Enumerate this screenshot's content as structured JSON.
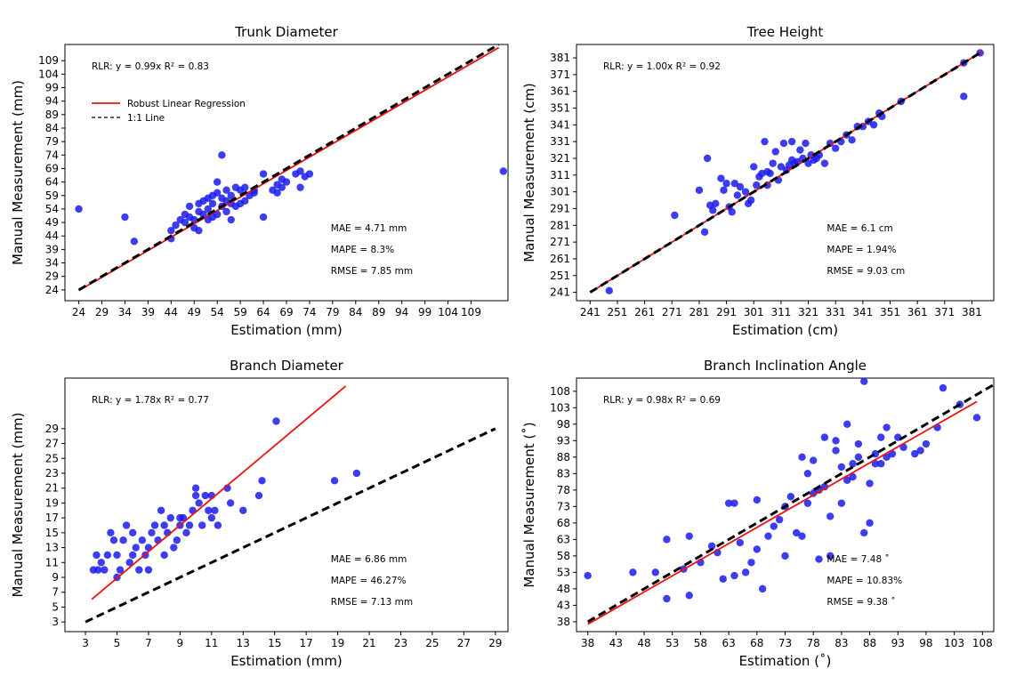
{
  "chart_data": [
    {
      "type": "scatter",
      "title": "Trunk Diameter",
      "xlabel": "Estimation (mm)",
      "ylabel": "Manual Measurement (mm)",
      "xlim": [
        21,
        117
      ],
      "ylim": [
        20,
        115
      ],
      "xticks": [
        24,
        29,
        34,
        39,
        44,
        49,
        54,
        59,
        64,
        69,
        74,
        79,
        84,
        89,
        94,
        99,
        104,
        109
      ],
      "yticks": [
        24,
        29,
        34,
        39,
        44,
        49,
        54,
        59,
        64,
        69,
        74,
        79,
        84,
        89,
        94,
        99,
        104,
        109
      ],
      "rlr_text": "RLR: y = 0.99x R² = 0.83",
      "metrics": [
        "MAE = 4.71 mm",
        "MAPE = 8.3%",
        "RMSE = 7.85 mm"
      ],
      "legend": [
        "Robust Linear Regression",
        "1:1 Line"
      ],
      "rlr_slope": 0.99,
      "line_range": [
        24,
        115
      ],
      "x": [
        24,
        34,
        36,
        44,
        44,
        45,
        46,
        47,
        47,
        48,
        48,
        49,
        49,
        50,
        50,
        50,
        51,
        51,
        52,
        52,
        52,
        53,
        53,
        53,
        54,
        54,
        54,
        55,
        55,
        55,
        56,
        56,
        56,
        57,
        57,
        57,
        58,
        58,
        59,
        59,
        60,
        60,
        61,
        62,
        62,
        64,
        64,
        66,
        67,
        67,
        68,
        68,
        69,
        71,
        72,
        72,
        73,
        74,
        116
      ],
      "y": [
        54,
        51,
        42,
        43,
        46,
        48,
        50,
        49,
        52,
        51,
        55,
        47,
        50,
        46,
        53,
        56,
        52,
        57,
        50,
        54,
        58,
        51,
        56,
        59,
        52,
        60,
        64,
        55,
        58,
        74,
        53,
        57,
        61,
        50,
        56,
        59,
        55,
        62,
        56,
        61,
        57,
        62,
        59,
        61,
        60,
        51,
        67,
        61,
        63,
        60,
        62,
        65,
        64,
        67,
        62,
        68,
        66,
        67,
        68
      ]
    },
    {
      "type": "scatter",
      "title": "Tree Height",
      "xlabel": "Estimation (cm)",
      "ylabel": "Manual Measurement (cm)",
      "xlim": [
        236,
        389
      ],
      "ylim": [
        236,
        389
      ],
      "xticks": [
        241,
        251,
        261,
        271,
        281,
        291,
        301,
        311,
        321,
        331,
        341,
        351,
        361,
        371,
        381
      ],
      "yticks": [
        241,
        251,
        261,
        271,
        281,
        291,
        301,
        311,
        321,
        331,
        341,
        351,
        361,
        371,
        381
      ],
      "rlr_text": "RLR: y = 1.00x R² = 0.92",
      "metrics": [
        "MAE = 6.1 cm",
        "MAPE = 1.94%",
        "RMSE = 9.03 cm"
      ],
      "rlr_slope": 1.0,
      "line_range": [
        241,
        385
      ],
      "x": [
        248,
        272,
        281,
        283,
        284,
        285,
        286,
        287,
        289,
        290,
        291,
        292,
        293,
        294,
        295,
        296,
        298,
        299,
        300,
        301,
        302,
        303,
        304,
        305,
        306,
        306,
        307,
        308,
        309,
        310,
        311,
        312,
        313,
        314,
        315,
        315,
        316,
        317,
        318,
        319,
        320,
        321,
        322,
        323,
        324,
        325,
        327,
        329,
        331,
        333,
        335,
        337,
        339,
        341,
        343,
        345,
        347,
        348,
        355,
        378,
        378,
        384
      ],
      "y": [
        242,
        287,
        302,
        277,
        321,
        293,
        290,
        294,
        309,
        302,
        306,
        292,
        289,
        306,
        299,
        304,
        301,
        294,
        296,
        316,
        305,
        310,
        312,
        331,
        305,
        313,
        312,
        318,
        325,
        308,
        316,
        330,
        314,
        317,
        320,
        331,
        318,
        319,
        326,
        321,
        330,
        318,
        323,
        320,
        321,
        323,
        318,
        330,
        327,
        331,
        335,
        332,
        340,
        340,
        343,
        341,
        348,
        346,
        355,
        358,
        378,
        384
      ]
    },
    {
      "type": "scatter",
      "title": "Branch Diameter",
      "xlabel": "Estimation (mm)",
      "ylabel": "Manual Measurement (mm)",
      "xlim": [
        1.7,
        29.8
      ],
      "ylim": [
        1.7,
        35.8
      ],
      "xticks": [
        3,
        5,
        7,
        9,
        11,
        13,
        15,
        17,
        19,
        21,
        23,
        25,
        27,
        29
      ],
      "yticks": [
        3,
        5,
        7,
        9,
        11,
        13,
        15,
        17,
        19,
        21,
        23,
        25,
        27,
        29
      ],
      "rlr_text": "RLR: y = 1.78x R² = 0.77",
      "metrics": [
        "MAE = 6.86 mm",
        "MAPE = 46.27%",
        "RMSE = 7.13 mm"
      ],
      "rlr_slope": 1.78,
      "rlr_range": [
        3.4,
        19.5
      ],
      "line_range": [
        3,
        29
      ],
      "x": [
        3.5,
        3.7,
        3.8,
        4.0,
        4.2,
        4.4,
        4.6,
        4.8,
        5.0,
        5.0,
        5.2,
        5.4,
        5.6,
        5.8,
        6.0,
        6.0,
        6.2,
        6.4,
        6.6,
        6.8,
        7.0,
        7.0,
        7.2,
        7.4,
        7.6,
        7.8,
        8.0,
        8.0,
        8.2,
        8.4,
        8.6,
        8.8,
        9.0,
        9.0,
        9.2,
        9.4,
        9.6,
        9.8,
        10.0,
        10.0,
        10.2,
        10.4,
        10.6,
        10.8,
        11.0,
        11.0,
        11.2,
        11.4,
        12.0,
        12.2,
        13.0,
        14.0,
        14.2,
        15.1,
        18.8,
        20.2
      ],
      "y": [
        10,
        12,
        10,
        11,
        10,
        12,
        15,
        14,
        9,
        12,
        10,
        14,
        16,
        11,
        12,
        15,
        13,
        10,
        14,
        12,
        13,
        10,
        15,
        16,
        14,
        18,
        12,
        16,
        15,
        17,
        13,
        14,
        16,
        17,
        17,
        15,
        16,
        18,
        20,
        21,
        19,
        16,
        20,
        18,
        17,
        20,
        18,
        16,
        21,
        19,
        18,
        20,
        22,
        30,
        22,
        23
      ]
    },
    {
      "type": "scatter",
      "title": "Branch Inclination Angle",
      "xlabel": "Estimation (˚)",
      "ylabel": "Manual Measurement (˚)",
      "xlim": [
        36,
        110
      ],
      "ylim": [
        35,
        112
      ],
      "xticks": [
        38,
        43,
        48,
        53,
        58,
        63,
        68,
        73,
        78,
        83,
        88,
        93,
        98,
        103,
        108
      ],
      "yticks": [
        38,
        43,
        48,
        53,
        58,
        63,
        68,
        73,
        78,
        83,
        88,
        93,
        98,
        103,
        108
      ],
      "rlr_text": "RLR: y = 0.98x R² = 0.69",
      "metrics": [
        "MAE = 7.48 ˚",
        "MAPE = 10.83%",
        "RMSE = 9.38 ˚"
      ],
      "rlr_slope": 0.98,
      "rlr_range": [
        38,
        107
      ],
      "line_range": [
        38,
        110
      ],
      "x": [
        38,
        46,
        50,
        52,
        52,
        55,
        56,
        56,
        58,
        60,
        61,
        62,
        63,
        64,
        64,
        65,
        66,
        67,
        68,
        68,
        69,
        70,
        71,
        72,
        73,
        73,
        74,
        75,
        76,
        76,
        77,
        77,
        78,
        78,
        79,
        79,
        80,
        80,
        81,
        81,
        82,
        82,
        83,
        83,
        84,
        84,
        85,
        85,
        86,
        86,
        87,
        87,
        88,
        88,
        89,
        89,
        90,
        90,
        91,
        91,
        92,
        93,
        94,
        96,
        97,
        98,
        100,
        101,
        104,
        107
      ],
      "y": [
        52,
        53,
        53,
        45,
        63,
        54,
        46,
        64,
        56,
        61,
        59,
        51,
        74,
        52,
        74,
        62,
        53,
        56,
        60,
        75,
        48,
        64,
        67,
        69,
        58,
        73,
        76,
        65,
        64,
        88,
        74,
        83,
        77,
        87,
        57,
        78,
        79,
        94,
        70,
        58,
        93,
        90,
        74,
        85,
        81,
        98,
        82,
        86,
        88,
        92,
        65,
        111,
        68,
        80,
        86,
        89,
        94,
        86,
        97,
        88,
        89,
        94,
        91,
        89,
        90,
        92,
        97,
        109,
        104,
        100
      ]
    }
  ]
}
